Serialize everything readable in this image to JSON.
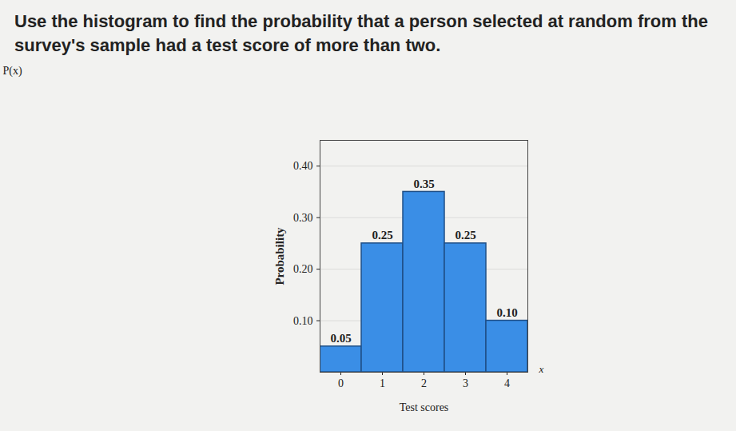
{
  "chart_data": {
    "type": "bar",
    "title": "Use the histogram to find the probability that a person selected at random from the survey's sample had a test score of more than two.",
    "x_label": "Test scores",
    "x_symbol": "x",
    "y_label": "Probability",
    "y_symbol": "P(x)",
    "categories": [
      "0",
      "1",
      "2",
      "3",
      "4"
    ],
    "values": [
      0.05,
      0.25,
      0.35,
      0.25,
      0.1
    ],
    "value_labels": [
      "0.05",
      "0.25",
      "0.35",
      "0.25",
      "0.10"
    ],
    "data_labels": true,
    "color": "#3a8ee6",
    "ylim": [
      0,
      0.45
    ],
    "yticks": [
      0.1,
      0.2,
      0.3,
      0.4
    ],
    "grid": true
  }
}
